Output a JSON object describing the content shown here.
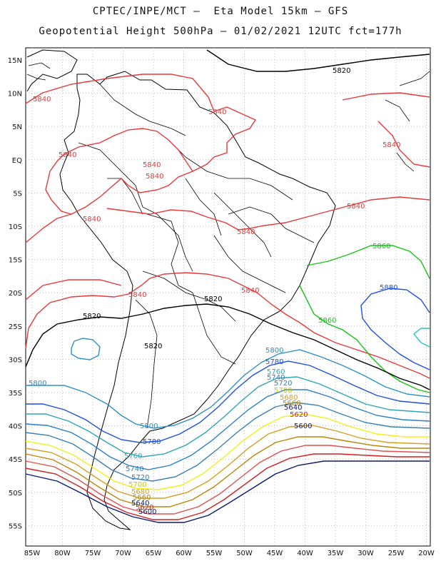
{
  "header": {
    "line1": "CPTEC/INPE/MCT –  Eta Model 15km – GFS",
    "line2": "Geopotential Height 500hPa – 01/02/2021 12UTC fct=177h"
  },
  "axes": {
    "lat_labels": [
      "15N",
      "10N",
      "5N",
      "EQ",
      "5S",
      "10S",
      "15S",
      "20S",
      "25S",
      "30S",
      "35S",
      "40S",
      "45S",
      "50S",
      "55S"
    ],
    "lon_labels": [
      "85W",
      "80W",
      "75W",
      "70W",
      "65W",
      "60W",
      "55W",
      "50W",
      "45W",
      "40W",
      "35W",
      "30W",
      "25W",
      "20W"
    ]
  },
  "colors": {
    "c5820": "#000000",
    "c5840": "#e8383a",
    "c5860": "#17c417",
    "c5880": "#1f4fe0",
    "c5800": "#2e8fc4",
    "c5780": "#1f4fe0",
    "c5760": "#2ea6b5",
    "c5740": "#2b7fc7",
    "c5720": "#3a7fb0",
    "c5700": "#f0f01a",
    "c5680": "#d4a020",
    "c5660": "#b8860b",
    "c5640": "#e05050",
    "c5620": "#d22020",
    "c5600": "#0a1a70",
    "coast": "#000000",
    "grid": "#bfbfbf"
  },
  "contour_labels": [
    {
      "text": "5820",
      "color": "#000000"
    },
    {
      "text": "5840",
      "color": "#e8383a"
    },
    {
      "text": "5840",
      "color": "#e8383a"
    },
    {
      "text": "5840",
      "color": "#e8383a"
    },
    {
      "text": "5840",
      "color": "#e8383a"
    },
    {
      "text": "5840",
      "color": "#e8383a"
    },
    {
      "text": "5840",
      "color": "#e8383a"
    },
    {
      "text": "5840",
      "color": "#e8383a"
    },
    {
      "text": "5840",
      "color": "#e8383a"
    },
    {
      "text": "5840",
      "color": "#e8383a"
    },
    {
      "text": "5840",
      "color": "#e8383a"
    },
    {
      "text": "5840",
      "color": "#e8383a"
    },
    {
      "text": "5860",
      "color": "#17c417"
    },
    {
      "text": "5860",
      "color": "#17c417"
    },
    {
      "text": "5880",
      "color": "#1f4fe0"
    },
    {
      "text": "5820",
      "color": "#000000"
    },
    {
      "text": "5820",
      "color": "#000000"
    },
    {
      "text": "5820",
      "color": "#000000"
    },
    {
      "text": "5800",
      "color": "#2e8fc4"
    },
    {
      "text": "5800",
      "color": "#2e8fc4"
    },
    {
      "text": "5800",
      "color": "#2e8fc4"
    },
    {
      "text": "5780",
      "color": "#1f4fe0"
    },
    {
      "text": "5780",
      "color": "#1f4fe0"
    },
    {
      "text": "5760",
      "color": "#2ea6b5"
    },
    {
      "text": "5760",
      "color": "#2ea6b5"
    },
    {
      "text": "5740",
      "color": "#2b7fc7"
    },
    {
      "text": "5740",
      "color": "#2b7fc7"
    },
    {
      "text": "5720",
      "color": "#3a7fb0"
    },
    {
      "text": "5720",
      "color": "#3a7fb0"
    },
    {
      "text": "5700",
      "color": "#c8c800"
    },
    {
      "text": "5700",
      "color": "#c8c800"
    },
    {
      "text": "5680",
      "color": "#d4a020"
    },
    {
      "text": "5680",
      "color": "#d4a020"
    },
    {
      "text": "5660",
      "color": "#b8860b"
    },
    {
      "text": "5660",
      "color": "#b8860b"
    },
    {
      "text": "5640",
      "color": "#0a1a70"
    },
    {
      "text": "5640",
      "color": "#0a1a70"
    },
    {
      "text": "5620",
      "color": "#d22020"
    },
    {
      "text": "5620",
      "color": "#d22020"
    },
    {
      "text": "5600",
      "color": "#0a1a70"
    },
    {
      "text": "5600",
      "color": "#0a1a70"
    }
  ]
}
